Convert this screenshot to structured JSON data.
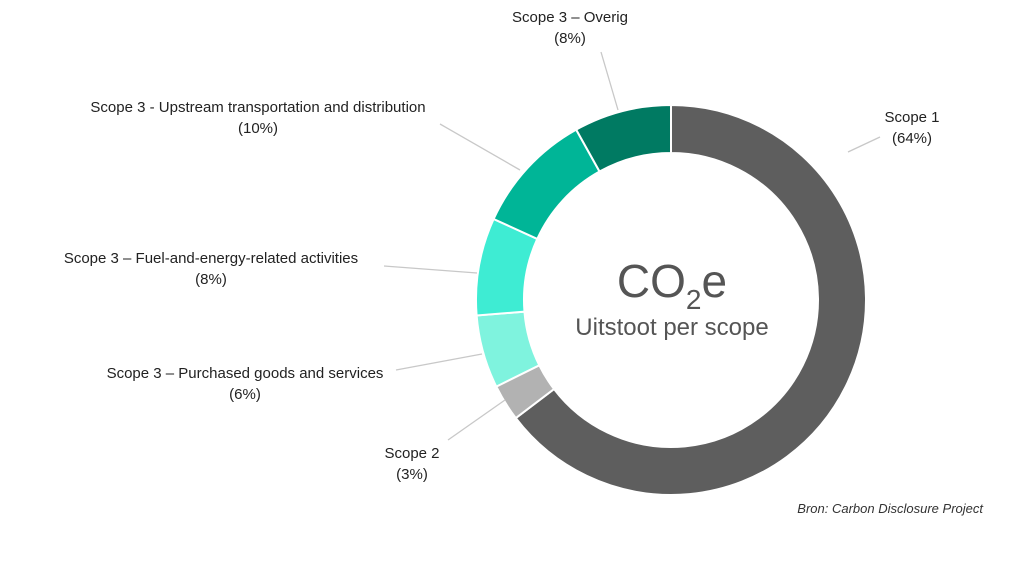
{
  "chart_data": {
    "type": "pie",
    "variant": "donut",
    "center_label": {
      "main_prefix": "CO",
      "subscript": "2",
      "main_suffix": "e",
      "subtitle": "Uitstoot per scope"
    },
    "slices": [
      {
        "name": "Scope 1",
        "percent_label": "(64%)",
        "value": 64,
        "color": "#5e5e5e"
      },
      {
        "name": "Scope 2",
        "percent_label": "(3%)",
        "value": 3,
        "color": "#b2b2b2"
      },
      {
        "name": "Scope 3 – Purchased goods and services",
        "percent_label": "(6%)",
        "value": 6,
        "color": "#7ff3de"
      },
      {
        "name": "Scope 3 – Fuel-and-energy-related activities",
        "percent_label": "(8%)",
        "value": 8,
        "color": "#3eecd3"
      },
      {
        "name": "Scope 3 - Upstream transportation and distribution",
        "percent_label": "(10%)",
        "value": 10,
        "color": "#00b597"
      },
      {
        "name": "Scope 3 – Overig",
        "percent_label": "(8%)",
        "value": 8,
        "color": "#007a62"
      }
    ],
    "source": "Bron: Carbon Disclosure Project"
  }
}
